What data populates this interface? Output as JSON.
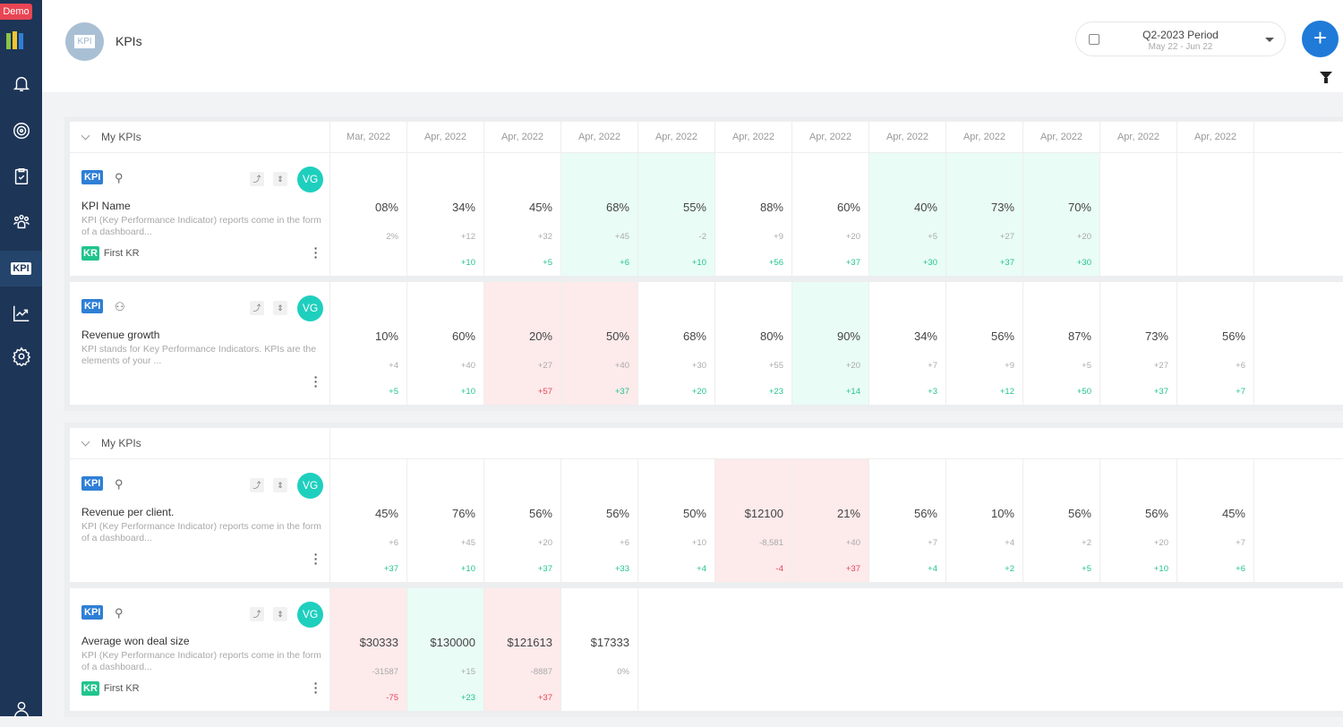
{
  "sidebar": {
    "badge": "Demo",
    "kpi_label": "KPI"
  },
  "header": {
    "title": "KPIs",
    "avatar": "KPI",
    "period_title": "Q2-2023 Period",
    "period_range": "May 22 - Jun 22",
    "add_label": "+"
  },
  "colors": {
    "green_bg": "#e9fcf6",
    "red_bg": "#fdeaeb",
    "accent": "#1f7ad8",
    "sidebar": "#1d3557"
  },
  "months": [
    "Mar, 2022",
    "Apr, 2022",
    "Apr, 2022",
    "Apr, 2022",
    "Apr, 2022",
    "Apr, 2022",
    "Apr, 2022",
    "Apr, 2022",
    "Apr, 2022",
    "Apr, 2022",
    "Apr, 2022",
    "Apr, 2022"
  ],
  "groups": [
    {
      "label": "My KPIs",
      "show_months": true,
      "rows": [
        {
          "badge": "KPI",
          "owner": "user-icon",
          "name": "KPI Name",
          "desc": "KPI (Key Performance Indicator) reports come in the form of a dashboard...",
          "kr": "First KR",
          "kr_badge": "KR",
          "avatar": "VG",
          "cells": [
            [
              "08%",
              "2%",
              "",
              ""
            ],
            [
              "34%",
              "+12",
              "+10",
              "",
              "pos"
            ],
            [
              "45%",
              "+32",
              "+5",
              "",
              "pos"
            ],
            [
              "68%",
              "+45",
              "+6",
              "g",
              "pos"
            ],
            [
              "55%",
              "-2",
              "+10",
              "g",
              "pos"
            ],
            [
              "88%",
              "+9",
              "+56",
              "",
              "pos"
            ],
            [
              "60%",
              "+20",
              "+37",
              "",
              "pos"
            ],
            [
              "40%",
              "+5",
              "+30",
              "g",
              "pos"
            ],
            [
              "73%",
              "+27",
              "+37",
              "g",
              "pos"
            ],
            [
              "70%",
              "+20",
              "+30",
              "g",
              "pos"
            ],
            [
              "",
              "",
              "",
              ""
            ],
            [
              "",
              "",
              "",
              ""
            ]
          ]
        },
        {
          "badge": "KPI",
          "owner": "team-icon",
          "name": "Revenue growth",
          "desc": "KPI stands for Key Performance Indicators. KPIs are the elements of your ...",
          "avatar": "VG",
          "cells": [
            [
              "10%",
              "+4",
              "+5",
              "",
              "pos"
            ],
            [
              "60%",
              "+40",
              "+10",
              "",
              "pos"
            ],
            [
              "20%",
              "+27",
              "+57",
              "r",
              "neg"
            ],
            [
              "50%",
              "+40",
              "+37",
              "r",
              "pos"
            ],
            [
              "68%",
              "+30",
              "+20",
              "",
              "pos"
            ],
            [
              "80%",
              "+55",
              "+23",
              "",
              "pos"
            ],
            [
              "90%",
              "+20",
              "+14",
              "g",
              "pos"
            ],
            [
              "34%",
              "+7",
              "+3",
              "",
              "pos"
            ],
            [
              "56%",
              "+9",
              "+12",
              "",
              "pos"
            ],
            [
              "87%",
              "+5",
              "+50",
              "",
              "pos"
            ],
            [
              "73%",
              "+27",
              "+37",
              "",
              "pos"
            ],
            [
              "56%",
              "+6",
              "+7",
              "",
              "pos"
            ]
          ]
        }
      ]
    },
    {
      "label": "My KPIs",
      "show_months": false,
      "rows": [
        {
          "badge": "KPI",
          "owner": "user-icon",
          "name": "Revenue per client.",
          "desc": "KPI (Key Performance Indicator) reports come in the form of a dashboard...",
          "avatar": "VG",
          "cells": [
            [
              "45%",
              "+6",
              "+37",
              "",
              "pos"
            ],
            [
              "76%",
              "+45",
              "+10",
              "",
              "pos"
            ],
            [
              "56%",
              "+20",
              "+37",
              "",
              "pos"
            ],
            [
              "56%",
              "+6",
              "+33",
              "",
              "pos"
            ],
            [
              "50%",
              "+10",
              "+4",
              "",
              "pos"
            ],
            [
              "$12100",
              "-8,581",
              "-4",
              "r",
              "neg"
            ],
            [
              "21%",
              "+40",
              "+37",
              "r",
              "neg"
            ],
            [
              "56%",
              "+7",
              "+4",
              "",
              "pos"
            ],
            [
              "10%",
              "+4",
              "+2",
              "",
              "pos"
            ],
            [
              "56%",
              "+2",
              "+5",
              "",
              "pos"
            ],
            [
              "56%",
              "+20",
              "+10",
              "",
              "pos"
            ],
            [
              "45%",
              "+7",
              "+6",
              "",
              "pos"
            ]
          ]
        },
        {
          "badge": "KPI",
          "owner": "user-icon",
          "name": "Average won deal size",
          "desc": "KPI (Key Performance Indicator) reports come in the form of a dashboard...",
          "kr": "First KR",
          "kr_badge": "KR",
          "avatar": "VG",
          "cells": [
            [
              "$30333",
              "-31587",
              "-75",
              "r",
              "neg"
            ],
            [
              "$130000",
              "+15",
              "+23",
              "g",
              "pos"
            ],
            [
              "$121613",
              "-8887",
              "+37",
              "r",
              "neg"
            ],
            [
              "$17333",
              "0%",
              "",
              ""
            ]
          ]
        }
      ]
    }
  ]
}
